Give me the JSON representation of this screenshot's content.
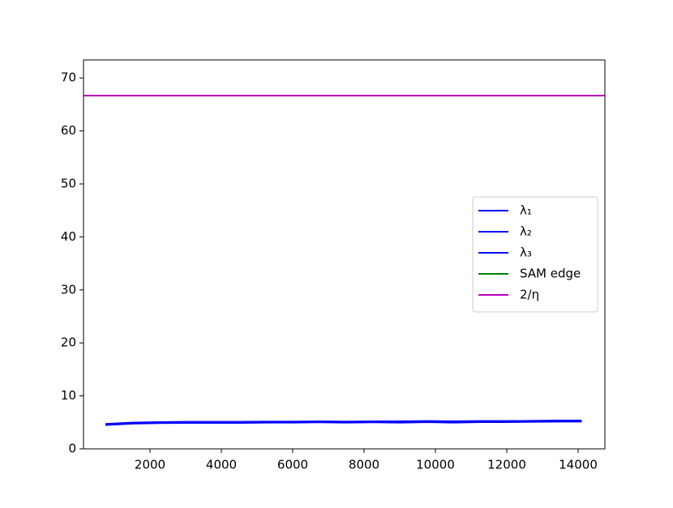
{
  "chart_data": {
    "type": "line",
    "x": [
      750,
      1500,
      2250,
      3000,
      3750,
      4500,
      5250,
      6000,
      6750,
      7500,
      8250,
      9000,
      9750,
      10500,
      11250,
      12000,
      12750,
      13500,
      14100
    ],
    "series": [
      {
        "name": "λ₁",
        "color": "#0000ff",
        "values": [
          4.7,
          4.95,
          5.05,
          5.1,
          5.1,
          5.1,
          5.15,
          5.15,
          5.2,
          5.15,
          5.2,
          5.2,
          5.25,
          5.2,
          5.25,
          5.25,
          5.3,
          5.35,
          5.35
        ]
      },
      {
        "name": "λ₂",
        "color": "#0000ff",
        "values": [
          4.6,
          4.85,
          4.95,
          5.0,
          5.0,
          5.0,
          5.05,
          5.05,
          5.1,
          5.05,
          5.1,
          5.1,
          5.15,
          5.1,
          5.15,
          5.15,
          5.2,
          5.25,
          5.25
        ]
      },
      {
        "name": "λ₃",
        "color": "#0000ff",
        "values": [
          4.5,
          4.75,
          4.85,
          4.9,
          4.9,
          4.9,
          4.95,
          4.95,
          5.0,
          4.95,
          5.0,
          4.95,
          5.05,
          4.95,
          5.05,
          5.05,
          5.1,
          5.15,
          5.15
        ]
      }
    ],
    "hlines": [
      {
        "name": "SAM edge",
        "color": "#008000",
        "y": 66.67
      },
      {
        "name": "2/η",
        "color": "#bf00bf",
        "y": 66.67
      }
    ],
    "xlim": [
      136,
      14750
    ],
    "ylim": [
      0,
      73.4
    ],
    "xticks": [
      2000,
      4000,
      6000,
      8000,
      10000,
      12000,
      14000
    ],
    "yticks": [
      0,
      10,
      20,
      30,
      40,
      50,
      60,
      70
    ],
    "legend": "center right"
  }
}
